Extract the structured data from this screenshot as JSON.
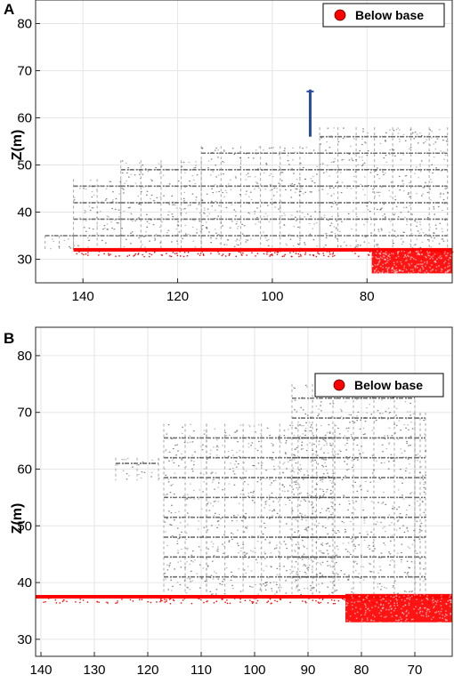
{
  "colors": {
    "below_base": "#ff0000",
    "grid": "#e6e6e6",
    "axis": "#262626",
    "building_dark": "#4a4a4a",
    "building_light": "#9a9a9a",
    "crane_blue": "#2b4aa0"
  },
  "chart_data": [
    {
      "panel_label": "A",
      "type": "scatter",
      "ylabel": "Z(m)",
      "xlabel": "",
      "xlim": [
        150,
        62
      ],
      "ylim": [
        25,
        85
      ],
      "xticks": [
        140,
        120,
        100,
        80
      ],
      "yticks": [
        30,
        40,
        50,
        60,
        70,
        80
      ],
      "grid": true,
      "legend_position": "top-right",
      "series": [
        {
          "name": "Below base",
          "color": "#ff0000",
          "ground_band": {
            "x": [
              142,
              62
            ],
            "z": 32
          },
          "dense_region": {
            "x": [
              79,
              62
            ],
            "z": [
              27,
              32
            ]
          }
        }
      ],
      "building_profile": [
        {
          "x": [
            148,
            142
          ],
          "z_top": 35
        },
        {
          "x": [
            142,
            132
          ],
          "z_top": 47
        },
        {
          "x": [
            132,
            115
          ],
          "z_top": 51
        },
        {
          "x": [
            115,
            90
          ],
          "z_top": 54
        },
        {
          "x": [
            90,
            63
          ],
          "z_top": 58
        }
      ],
      "crane": {
        "x": 92,
        "z_top": 66
      }
    },
    {
      "panel_label": "B",
      "type": "scatter",
      "ylabel": "Z(m)",
      "xlabel": "",
      "xlim": [
        141,
        63
      ],
      "ylim": [
        27,
        85
      ],
      "xticks": [
        140,
        130,
        120,
        110,
        100,
        90,
        80,
        70
      ],
      "yticks": [
        30,
        40,
        50,
        60,
        70,
        80
      ],
      "grid": true,
      "legend_position": "top-right",
      "series": [
        {
          "name": "Below base",
          "color": "#ff0000",
          "ground_band": {
            "x": [
              141,
              63
            ],
            "z": 37.5
          },
          "dense_region": {
            "x": [
              83,
              63
            ],
            "z": [
              33,
              38
            ]
          }
        }
      ],
      "building_profile": [
        {
          "x": [
            126,
            118
          ],
          "z_bottom": 58,
          "z_top": 62
        },
        {
          "x": [
            117,
            109
          ],
          "z_top": 68
        },
        {
          "x": [
            109,
            85
          ],
          "z_top": 68
        },
        {
          "x": [
            93,
            70
          ],
          "z_top": 75
        },
        {
          "x": [
            70,
            68
          ],
          "z_top": 70
        }
      ]
    }
  ]
}
